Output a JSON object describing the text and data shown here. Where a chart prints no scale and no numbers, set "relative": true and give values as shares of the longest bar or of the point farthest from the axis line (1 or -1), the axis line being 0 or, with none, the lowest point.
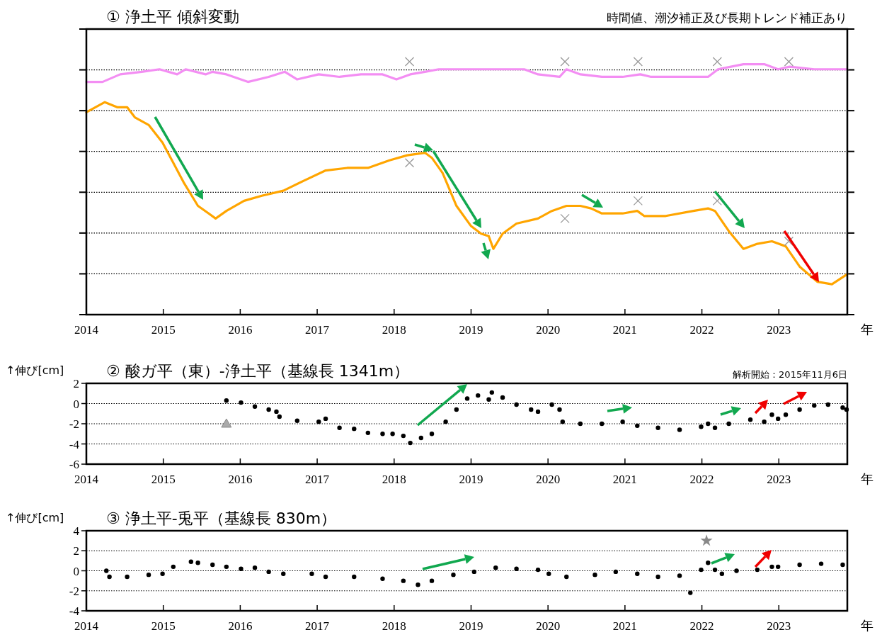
{
  "chart_data": [
    {
      "type": "line",
      "relative": true,
      "title": "① 浄土平 傾斜変動",
      "subtitle": "時間値、潮汐補正及び長期トレンド補正あり",
      "xlabel": "年",
      "xlim": [
        2014,
        2023.89
      ],
      "xticks": [
        2014,
        2015,
        2016,
        2017,
        2018,
        2019,
        2020,
        2021,
        2022,
        2023
      ],
      "grid": true,
      "series": [
        {
          "color": "#f38ef3",
          "x": [
            2014.0,
            2014.21,
            2014.44,
            2014.72,
            2014.95,
            2015.18,
            2015.29,
            2015.55,
            2015.64,
            2015.82,
            2016.1,
            2016.37,
            2016.58,
            2016.74,
            2017.02,
            2017.29,
            2017.57,
            2017.85,
            2018.03,
            2018.21,
            2018.4,
            2018.58,
            2018.86,
            2019.32,
            2019.69,
            2019.87,
            2020.15,
            2020.24,
            2020.42,
            2020.7,
            2020.97,
            2021.2,
            2021.34,
            2021.71,
            2022.08,
            2022.21,
            2022.54,
            2022.81,
            2022.99,
            2023.14,
            2023.46,
            2023.89
          ],
          "values": [
            0.92,
            0.92,
            0.95,
            0.96,
            0.97,
            0.95,
            0.97,
            0.95,
            0.96,
            0.95,
            0.92,
            0.94,
            0.96,
            0.93,
            0.95,
            0.94,
            0.95,
            0.95,
            0.93,
            0.95,
            0.96,
            0.97,
            0.97,
            0.97,
            0.97,
            0.95,
            0.94,
            0.97,
            0.95,
            0.94,
            0.94,
            0.95,
            0.94,
            0.94,
            0.94,
            0.97,
            0.99,
            0.99,
            0.97,
            0.98,
            0.97,
            0.97
          ]
        },
        {
          "color": "#ffa500",
          "x": [
            2014.0,
            2014.24,
            2014.4,
            2014.53,
            2014.63,
            2014.81,
            2014.99,
            2015.13,
            2015.27,
            2015.45,
            2015.59,
            2015.68,
            2015.82,
            2016.05,
            2016.28,
            2016.56,
            2016.83,
            2017.11,
            2017.39,
            2017.66,
            2017.94,
            2018.17,
            2018.4,
            2018.49,
            2018.63,
            2018.81,
            2019.0,
            2019.13,
            2019.23,
            2019.29,
            2019.41,
            2019.59,
            2019.87,
            2020.05,
            2020.24,
            2020.42,
            2020.56,
            2020.7,
            2020.97,
            2021.16,
            2021.25,
            2021.53,
            2021.89,
            2022.08,
            2022.17,
            2022.35,
            2022.54,
            2022.72,
            2022.91,
            2023.09,
            2023.27,
            2023.5,
            2023.69,
            2023.89
          ],
          "values": [
            0.8,
            0.84,
            0.82,
            0.82,
            0.78,
            0.75,
            0.68,
            0.6,
            0.52,
            0.43,
            0.4,
            0.38,
            0.41,
            0.45,
            0.47,
            0.49,
            0.53,
            0.57,
            0.58,
            0.58,
            0.61,
            0.63,
            0.64,
            0.62,
            0.56,
            0.43,
            0.35,
            0.32,
            0.31,
            0.26,
            0.32,
            0.36,
            0.38,
            0.41,
            0.43,
            0.43,
            0.42,
            0.4,
            0.4,
            0.41,
            0.39,
            0.39,
            0.41,
            0.42,
            0.41,
            0.33,
            0.26,
            0.28,
            0.29,
            0.27,
            0.19,
            0.13,
            0.12,
            0.16
          ]
        },
        {
          "type": "scatter",
          "marker": "cross",
          "color": "#999999",
          "x": [
            2018.2,
            2020.22,
            2021.17,
            2022.2,
            2023.13,
            2018.2,
            2020.22,
            2021.17,
            2022.2,
            2023.13
          ],
          "values": [
            1.0,
            1.0,
            1.0,
            1.0,
            1.0,
            0.6,
            0.38,
            0.45,
            0.45,
            0.29
          ]
        }
      ]
    },
    {
      "type": "scatter",
      "title": "② 酸ガ平（東）-浄土平（基線長 1341m）",
      "ylabel": "↑伸び[cm]",
      "xlabel": "年",
      "annotations": [
        "解析開始：2015年11月6日"
      ],
      "xlim": [
        2014,
        2023.89
      ],
      "xticks": [
        2014,
        2015,
        2016,
        2017,
        2018,
        2019,
        2020,
        2021,
        2022,
        2023
      ],
      "ylim": [
        -6,
        2
      ],
      "yticks": [
        -6,
        -4,
        -2,
        0,
        2
      ],
      "grid": "y",
      "marker": "circle",
      "series": [
        {
          "color": "#000000",
          "x": [
            2015.82,
            2016.01,
            2016.19,
            2016.37,
            2016.47,
            2016.51,
            2016.74,
            2017.02,
            2017.11,
            2017.29,
            2017.48,
            2017.66,
            2017.85,
            2017.98,
            2018.12,
            2018.21,
            2018.35,
            2018.49,
            2018.67,
            2018.81,
            2018.95,
            2019.09,
            2019.23,
            2019.27,
            2019.41,
            2019.59,
            2019.78,
            2019.87,
            2020.05,
            2020.15,
            2020.19,
            2020.42,
            2020.7,
            2020.97,
            2021.16,
            2021.43,
            2021.71,
            2021.99,
            2022.08,
            2022.17,
            2022.35,
            2022.63,
            2022.81,
            2022.91,
            2022.99,
            2023.09,
            2023.27,
            2023.46,
            2023.64,
            2023.83,
            2023.88
          ],
          "values": [
            0.3,
            0.1,
            -0.3,
            -0.6,
            -0.8,
            -1.3,
            -1.7,
            -1.8,
            -1.5,
            -2.4,
            -2.5,
            -2.9,
            -3.0,
            -3.0,
            -3.2,
            -3.9,
            -3.4,
            -3.0,
            -1.8,
            -0.6,
            0.5,
            0.8,
            0.4,
            1.1,
            0.6,
            -0.1,
            -0.6,
            -0.8,
            -0.1,
            -0.6,
            -1.8,
            -2.0,
            -2.0,
            -1.8,
            -2.2,
            -2.4,
            -2.6,
            -2.3,
            -2.0,
            -2.4,
            -2.0,
            -1.6,
            -1.8,
            -1.1,
            -1.5,
            -1.1,
            -0.6,
            -0.2,
            -0.1,
            -0.4,
            -0.6
          ]
        },
        {
          "color": "#aaaaaa",
          "marker": "triangle",
          "x": [
            2015.82
          ],
          "values": [
            -2.0
          ]
        }
      ]
    },
    {
      "type": "scatter",
      "title": "③ 浄土平-兎平（基線長 830m）",
      "ylabel": "↑伸び[cm]",
      "xlabel": "年",
      "xlim": [
        2014,
        2023.89
      ],
      "xticks": [
        2014,
        2015,
        2016,
        2017,
        2018,
        2019,
        2020,
        2021,
        2022,
        2023
      ],
      "ylim": [
        -4,
        4
      ],
      "yticks": [
        -4,
        -2,
        0,
        2,
        4
      ],
      "grid": "y",
      "marker": "circle",
      "series": [
        {
          "color": "#000000",
          "x": [
            2014.26,
            2014.3,
            2014.53,
            2014.81,
            2014.99,
            2015.13,
            2015.36,
            2015.45,
            2015.64,
            2015.82,
            2016.01,
            2016.19,
            2016.37,
            2016.56,
            2016.93,
            2017.11,
            2017.48,
            2017.85,
            2018.12,
            2018.31,
            2018.49,
            2018.77,
            2019.04,
            2019.32,
            2019.59,
            2019.87,
            2020.01,
            2020.24,
            2020.61,
            2020.88,
            2021.16,
            2021.43,
            2021.71,
            2021.85,
            2021.99,
            2022.08,
            2022.17,
            2022.26,
            2022.45,
            2022.72,
            2022.91,
            2022.99,
            2023.27,
            2023.55,
            2023.83
          ],
          "values": [
            0.0,
            -0.6,
            -0.6,
            -0.4,
            -0.3,
            0.4,
            0.9,
            0.8,
            0.6,
            0.4,
            0.2,
            0.3,
            -0.1,
            -0.3,
            -0.3,
            -0.6,
            -0.6,
            -0.8,
            -1.0,
            -1.4,
            -1.0,
            -0.4,
            -0.1,
            0.3,
            0.2,
            0.1,
            -0.3,
            -0.6,
            -0.4,
            -0.1,
            -0.3,
            -0.6,
            -0.5,
            -2.2,
            0.1,
            0.8,
            0.1,
            -0.3,
            0.0,
            0.1,
            0.4,
            0.4,
            0.6,
            0.7,
            0.6
          ]
        },
        {
          "color": "#888888",
          "marker": "star",
          "x": [
            2022.06
          ],
          "values": [
            3.0
          ]
        }
      ]
    }
  ]
}
